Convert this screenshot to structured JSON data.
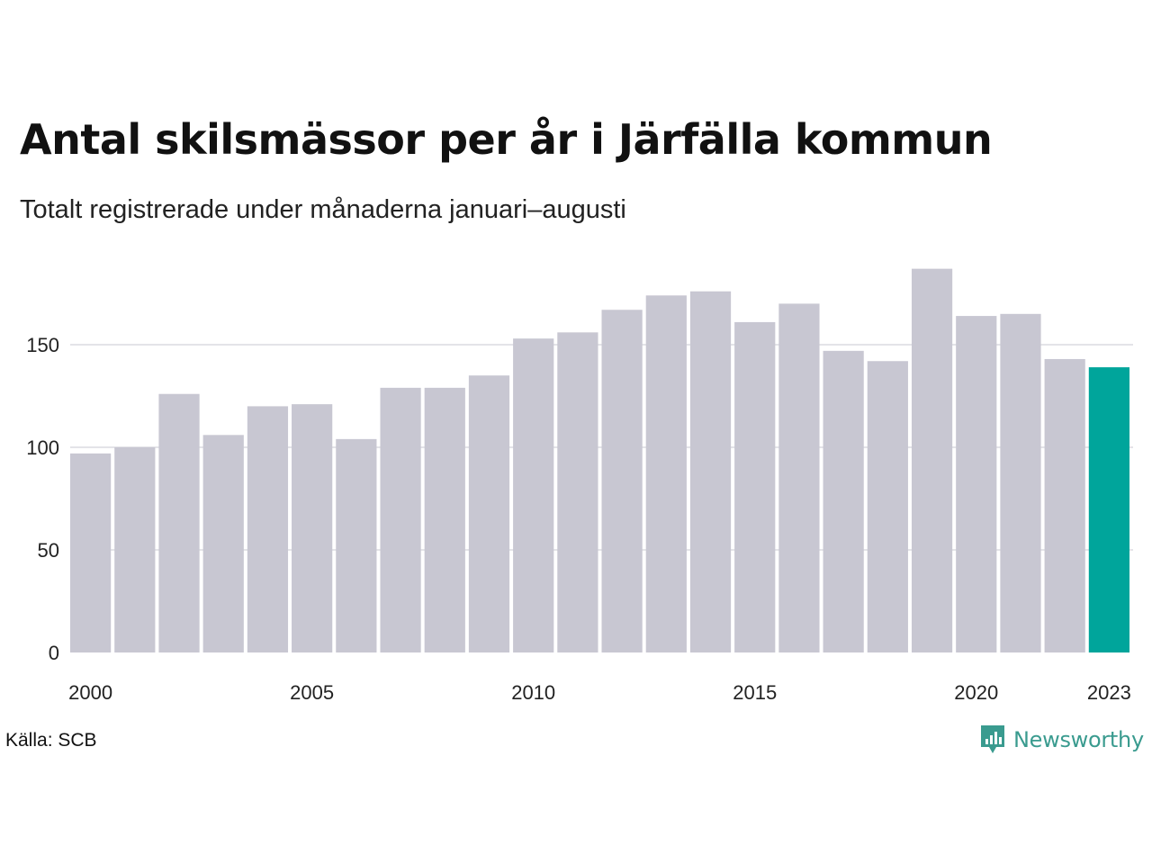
{
  "colors": {
    "bar": "#c8c7d2",
    "highlight": "#00a59b",
    "grid": "#e4e4e8",
    "axis_text": "#222222",
    "brand": "#3a9b8f"
  },
  "footer": {
    "source": "Källa: SCB",
    "brand_name": "Newsworthy",
    "brand_icon": "newsworthy-logo-icon"
  },
  "chart_data": {
    "type": "bar",
    "title": "Antal skilsmässor per år i Järfälla kommun",
    "subtitle": "Totalt registrerade under månaderna januari–augusti",
    "xlabel": "",
    "ylabel": "",
    "categories": [
      2000,
      2001,
      2002,
      2003,
      2004,
      2005,
      2006,
      2007,
      2008,
      2009,
      2010,
      2011,
      2012,
      2013,
      2014,
      2015,
      2016,
      2017,
      2018,
      2019,
      2020,
      2021,
      2022,
      2023
    ],
    "values": [
      97,
      100,
      126,
      106,
      120,
      121,
      104,
      129,
      129,
      135,
      153,
      156,
      167,
      174,
      176,
      161,
      170,
      147,
      142,
      187,
      164,
      165,
      143,
      139
    ],
    "highlight_category": 2023,
    "x_tick_labels": [
      "2000",
      "2005",
      "2010",
      "2015",
      "2020",
      "2023"
    ],
    "y_ticks": [
      0,
      50,
      100,
      150
    ],
    "ylim": [
      0,
      190
    ],
    "grid": true,
    "legend": "none"
  }
}
